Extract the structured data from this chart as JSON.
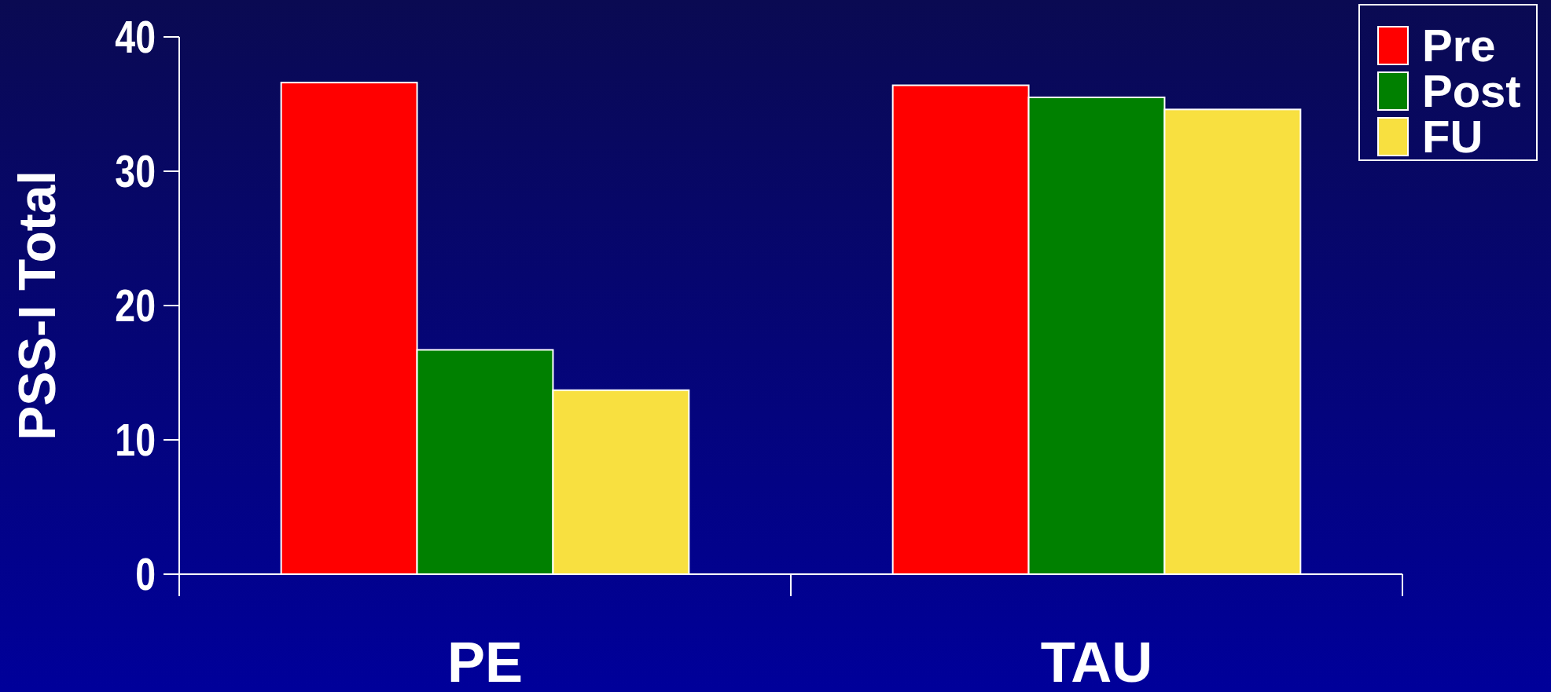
{
  "chart_data": {
    "type": "bar",
    "ylabel": "PSS-I Total",
    "categories": [
      "PE",
      "TAU"
    ],
    "series": [
      {
        "name": "Pre",
        "color": "#ff0000",
        "values": [
          36.6,
          36.4
        ]
      },
      {
        "name": "Post",
        "color": "#008000",
        "values": [
          16.7,
          35.5
        ]
      },
      {
        "name": "FU",
        "color": "#f8e040",
        "values": [
          13.7,
          34.6
        ]
      }
    ],
    "ylim": [
      0,
      40
    ],
    "yticks": [
      0,
      10,
      20,
      30,
      40
    ],
    "legend": "top right"
  }
}
